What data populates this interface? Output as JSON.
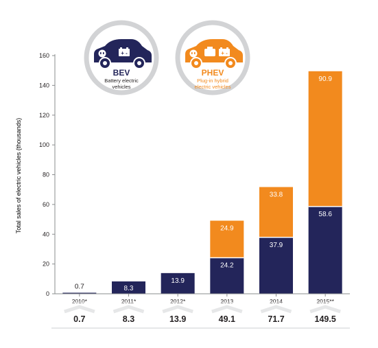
{
  "colors": {
    "bev": "#23255a",
    "phev": "#f28a1e",
    "badge_ring": "#d2d3d5",
    "badge_fill": "#ffffff",
    "axis": "#8a8c8e",
    "text": "#231f20",
    "total_band": "#e6e7e8"
  },
  "legend": {
    "bev": {
      "abbr": "BEV",
      "line1": "Battery electric",
      "line2": "vehicles",
      "icon": "car-battery-icon"
    },
    "phev": {
      "abbr": "PHEV",
      "line1": "Plug-in hybrid",
      "line2": "electric vehicles",
      "icon": "car-engine-battery-icon"
    }
  },
  "chart_data": {
    "type": "bar",
    "stacked": true,
    "ylabel": "Total sales of electric vehicles (thousands)",
    "xlabel": "",
    "ylim": [
      0,
      160
    ],
    "yticks": [
      0,
      20,
      40,
      60,
      80,
      100,
      120,
      140,
      160
    ],
    "grid": false,
    "categories": [
      "2010*",
      "2011*",
      "2012*",
      "2013",
      "2014",
      "2015**"
    ],
    "series": [
      {
        "key": "bev",
        "name": "BEV",
        "values": [
          0.7,
          8.3,
          13.9,
          24.2,
          37.9,
          58.6
        ],
        "labels": [
          "0.7",
          "8.3",
          "13.9",
          "24.2",
          "37.9",
          "58.6"
        ]
      },
      {
        "key": "phev",
        "name": "PHEV",
        "values": [
          0,
          0,
          0,
          24.9,
          33.8,
          90.9
        ],
        "labels": [
          "",
          "",
          "",
          "24.9",
          "33.8",
          "90.9"
        ]
      }
    ],
    "totals": [
      "0.7",
      "8.3",
      "13.9",
      "49.1",
      "71.7",
      "149.5"
    ]
  }
}
